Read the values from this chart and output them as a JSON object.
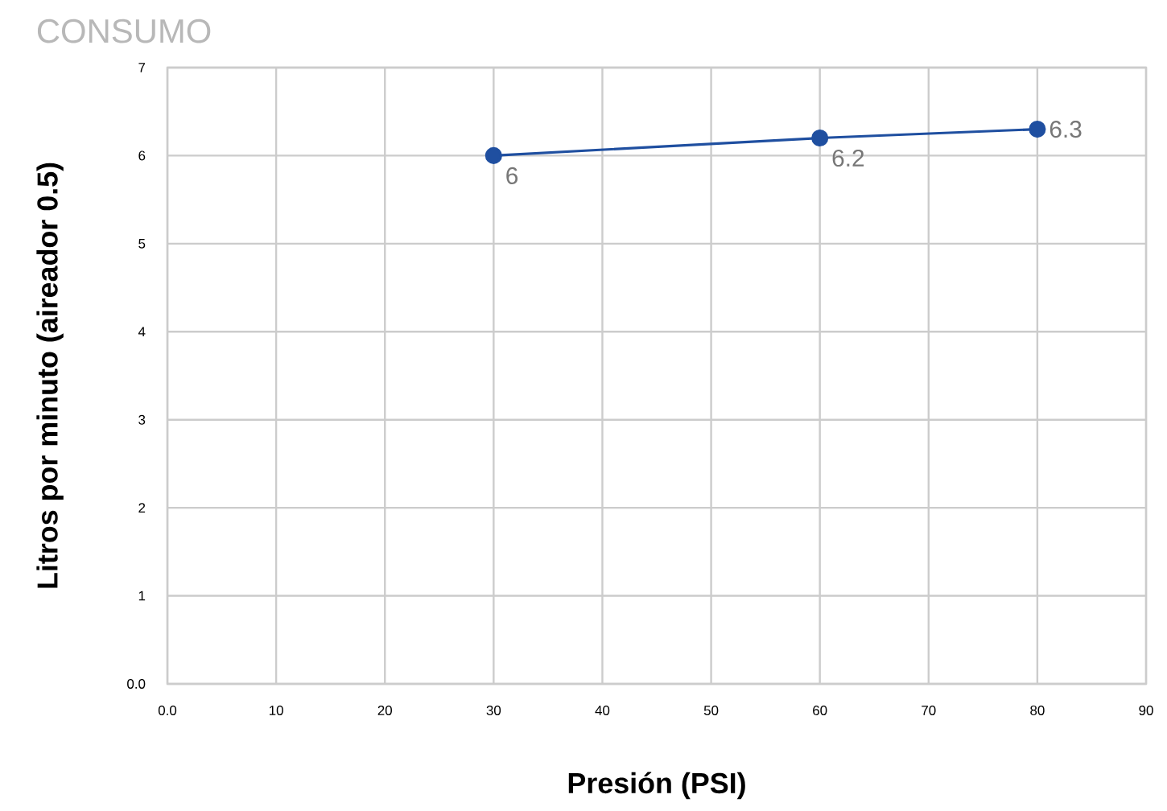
{
  "chart_data": {
    "type": "line",
    "title": "CONSUMO",
    "xlabel": "Presión (PSI)",
    "ylabel": "Litros por minuto (aireador 0.5)",
    "x": [
      30,
      60,
      80
    ],
    "series": [
      {
        "color": "#1f4fa0",
        "values": [
          6,
          6.2,
          6.3
        ]
      }
    ],
    "xlim": [
      0,
      90
    ],
    "ylim": [
      0,
      7
    ],
    "xticks": [
      {
        "value": 0,
        "label": "0.0"
      },
      10,
      20,
      30,
      40,
      50,
      60,
      70,
      80,
      90
    ],
    "yticks": [
      {
        "value": 0,
        "label": "0.0"
      },
      1,
      2,
      3,
      4,
      5,
      6,
      7
    ],
    "grid": true,
    "marker": "circle",
    "line_style": "solid",
    "data_labels": true
  }
}
